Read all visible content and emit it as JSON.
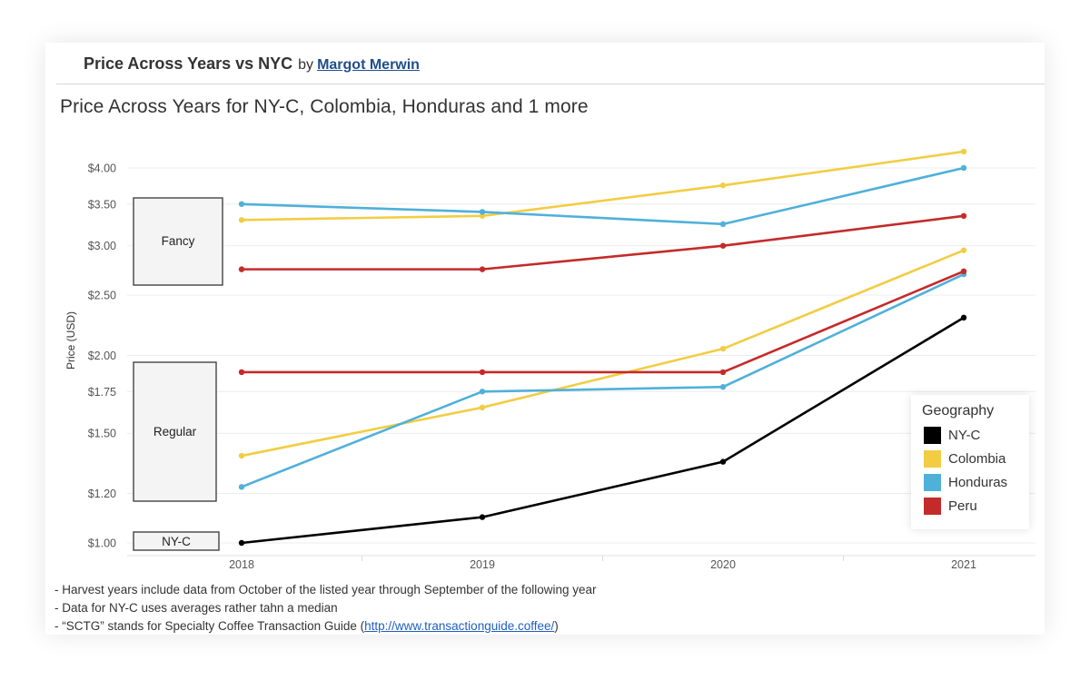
{
  "header": {
    "title": "Price Across Years vs NYC",
    "by": "by",
    "author": "Margot Merwin"
  },
  "chart_data": {
    "type": "line",
    "title": "Price Across Years for NY-C, Colombia, Honduras and 1 more",
    "xlabel": "",
    "ylabel": "Price (USD)",
    "x": [
      "2018",
      "2019",
      "2020",
      "2021"
    ],
    "y_ticks": [
      {
        "value": 1.0,
        "label": "$1.00"
      },
      {
        "value": 1.2,
        "label": "$1.20"
      },
      {
        "value": 1.5,
        "label": "$1.50"
      },
      {
        "value": 1.75,
        "label": "$1.75"
      },
      {
        "value": 2.0,
        "label": "$2.00"
      },
      {
        "value": 2.5,
        "label": "$2.50"
      },
      {
        "value": 3.0,
        "label": "$3.00"
      },
      {
        "value": 3.5,
        "label": "$3.50"
      },
      {
        "value": 4.0,
        "label": "$4.00"
      }
    ],
    "grid": true,
    "legend_position": "bottom-right",
    "series": [
      {
        "name": "NY-C",
        "color": "#000000",
        "values": [
          1.0,
          1.1,
          1.35,
          2.3
        ]
      },
      {
        "name": "Colombia",
        "color": "#f2cd44",
        "values": [
          3.3,
          3.35,
          3.75,
          4.25
        ]
      },
      {
        "name": "Colombia",
        "color": "#f2cd44",
        "values": [
          1.38,
          1.65,
          2.05,
          2.95
        ]
      },
      {
        "name": "Honduras",
        "color": "#4fb0da",
        "values": [
          3.5,
          3.4,
          3.25,
          4.0
        ]
      },
      {
        "name": "Honduras",
        "color": "#4fb0da",
        "values": [
          1.23,
          1.75,
          1.78,
          2.7
        ]
      },
      {
        "name": "Peru",
        "color": "#c52a2a",
        "values": [
          2.75,
          2.75,
          3.0,
          3.35
        ]
      },
      {
        "name": "Peru",
        "color": "#c52a2a",
        "values": [
          1.88,
          1.88,
          1.88,
          2.73
        ]
      }
    ],
    "group_labels": [
      "Fancy",
      "Regular",
      "NY-C"
    ]
  },
  "legend": {
    "title": "Geography",
    "items": [
      {
        "label": "NY-C",
        "color": "#000000"
      },
      {
        "label": "Colombia",
        "color": "#f2cd44"
      },
      {
        "label": "Honduras",
        "color": "#4fb0da"
      },
      {
        "label": "Peru",
        "color": "#c52a2a"
      }
    ]
  },
  "notes": {
    "line1": "- Harvest years include data from October of the listed year through September of the following year",
    "line2": "- Data for NY-C uses averages rather tahn a median",
    "line3_prefix": "- “SCTG” stands for Specialty Coffee Transaction Guide (",
    "line3_link": "http://www.transactionguide.coffee/",
    "line3_suffix": ")"
  }
}
